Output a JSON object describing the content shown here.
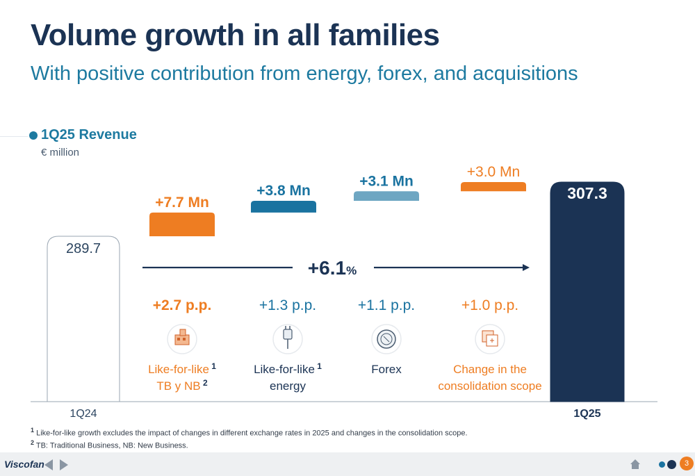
{
  "header": {
    "title": "Volume growth in all families",
    "subtitle": "With positive contribution from energy, forex, and acquisitions"
  },
  "legend": {
    "label": "1Q25 Revenue",
    "unit": "€ million"
  },
  "chart_data": {
    "type": "bar",
    "subtype": "waterfall",
    "categories": [
      "1Q24",
      "Like-for-like TB y NB",
      "Like-for-like energy",
      "Forex",
      "Change in the consolidation scope",
      "1Q25"
    ],
    "values": [
      289.7,
      7.7,
      3.8,
      3.1,
      3.0,
      307.3
    ],
    "kinds": [
      "total",
      "delta",
      "delta",
      "delta",
      "delta",
      "total"
    ],
    "bar_labels": [
      "289.7",
      "+7.7 Mn",
      "+3.8 Mn",
      "+3.1 Mn",
      "+3.0 Mn",
      "307.3"
    ],
    "x_labels": [
      "1Q24",
      "1Q25"
    ],
    "colors": [
      "#ffffff",
      "#ee7d22",
      "#1a73a0",
      "#6ea6c2",
      "#ee7d22",
      "#1b3354"
    ],
    "growth_label": "+6.1",
    "growth_unit": "%",
    "drivers": [
      {
        "pp": "+2.7 p.p.",
        "line1": "Like-for-like",
        "sup1": "1",
        "line2": "TB y NB",
        "sup2": "2",
        "icon": "factory-icon",
        "color": "#ee7d22"
      },
      {
        "pp": "+1.3 p.p.",
        "line1": "Like-for-like",
        "sup1": "1",
        "line2": "energy",
        "sup2": "",
        "icon": "energy-plug-icon",
        "color": "#1a73a0"
      },
      {
        "pp": "+1.1 p.p.",
        "line1": "Forex",
        "sup1": "",
        "line2": "",
        "sup2": "",
        "icon": "coin-icon",
        "color": "#1a73a0"
      },
      {
        "pp": "+1.0 p.p.",
        "line1": "Change in the",
        "sup1": "",
        "line2": "consolidation scope",
        "sup2": "",
        "icon": "scope-icon",
        "color": "#ee7d22"
      }
    ]
  },
  "footnotes": [
    {
      "mark": "1",
      "text": "Like-for-like growth excludes the impact of changes in different exchange rates in 2025 and changes in the consolidation scope."
    },
    {
      "mark": "2",
      "text": "TB: Traditional Business, NB: New Business."
    }
  ],
  "footer": {
    "logo": "Viscofan",
    "page": "3"
  }
}
